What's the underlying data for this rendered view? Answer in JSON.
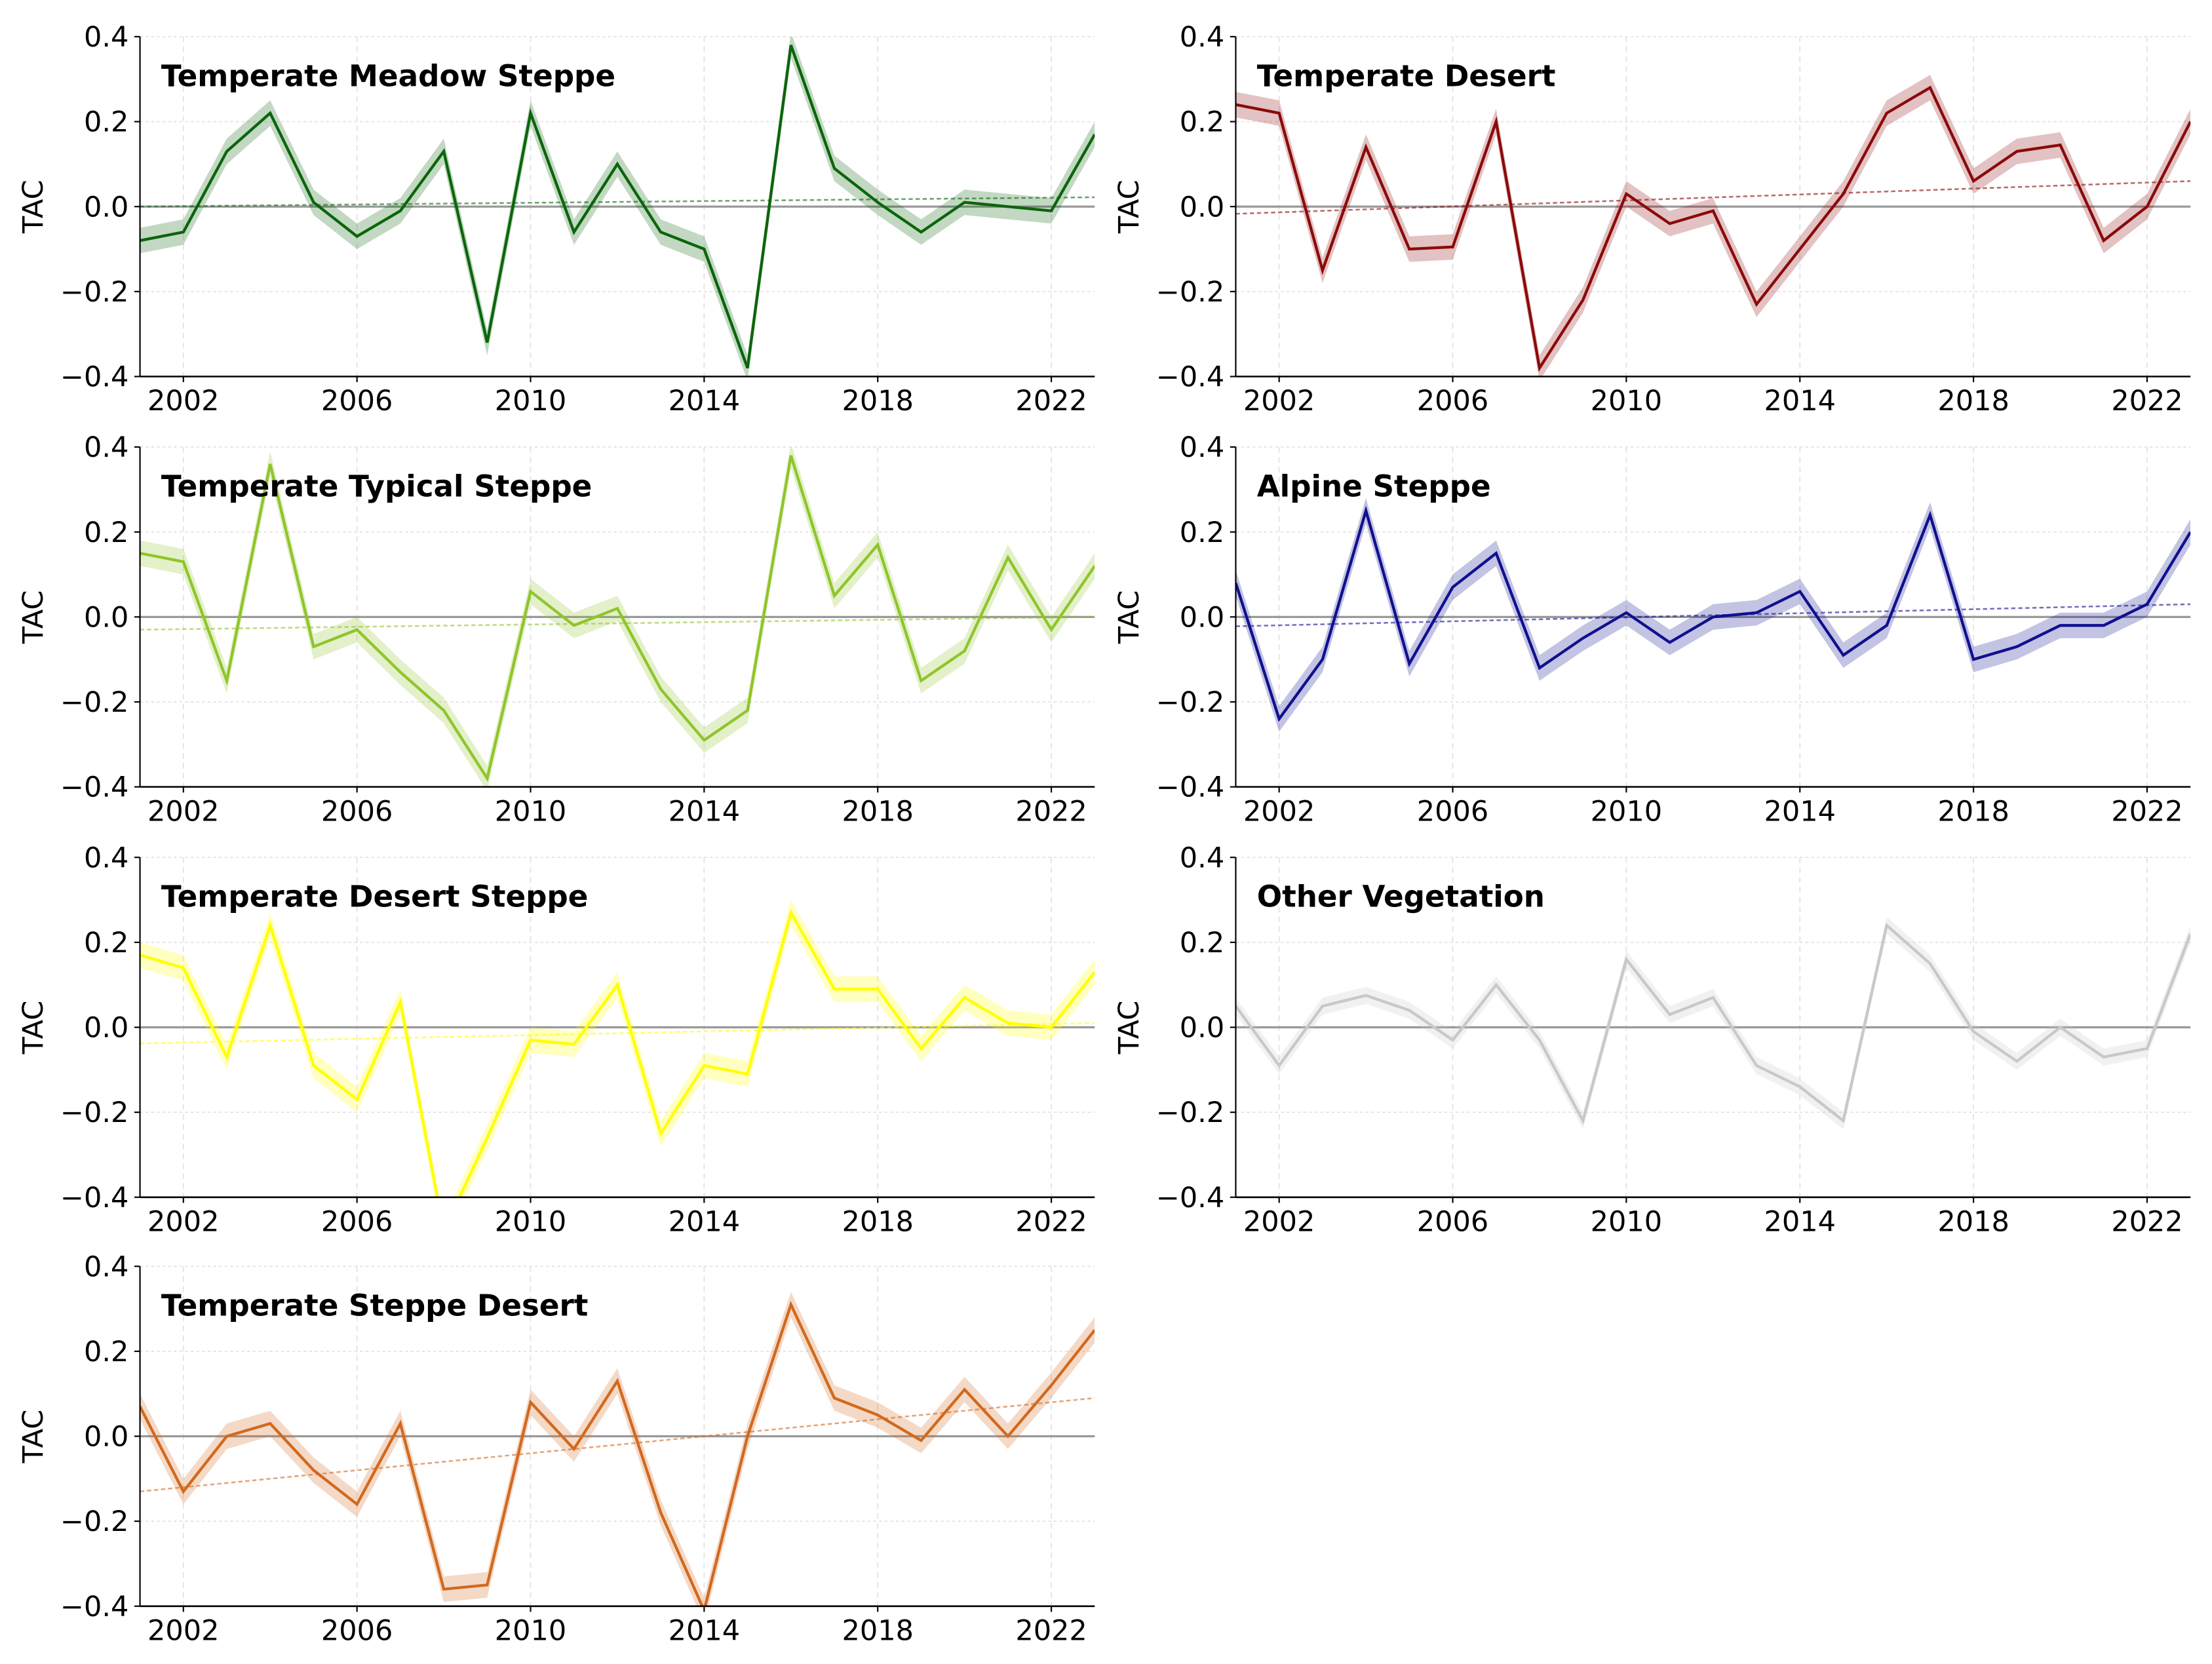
{
  "chart_data": [
    {
      "type": "line",
      "title": "Temperate Meadow Steppe",
      "ylabel": "TAC",
      "color": "#0b650b",
      "band": 0.03,
      "trend": [
        0.0,
        0.022
      ],
      "values": [
        -0.08,
        -0.06,
        0.13,
        0.22,
        0.01,
        -0.07,
        -0.01,
        0.13,
        -0.32,
        0.22,
        -0.06,
        0.1,
        -0.06,
        -0.1,
        -0.38,
        0.38,
        0.09,
        0.01,
        -0.06,
        0.01,
        0.0,
        -0.01,
        0.17
      ]
    },
    {
      "type": "line",
      "title": "Temperate Desert",
      "ylabel": "TAC",
      "color": "#8b0a0a",
      "band": 0.03,
      "trend": [
        -0.017,
        0.06
      ],
      "values": [
        0.24,
        0.22,
        -0.15,
        0.14,
        -0.1,
        -0.095,
        0.2,
        -0.38,
        -0.22,
        0.03,
        -0.04,
        -0.01,
        -0.23,
        -0.1,
        0.03,
        0.22,
        0.28,
        0.06,
        0.13,
        0.145,
        -0.08,
        0.0,
        0.2
      ]
    },
    {
      "type": "line",
      "title": "Temperate Typical Steppe",
      "ylabel": "TAC",
      "color": "#8fc52a",
      "band": 0.03,
      "trend": [
        -0.03,
        0.0
      ],
      "values": [
        0.15,
        0.13,
        -0.15,
        0.36,
        -0.07,
        -0.03,
        -0.13,
        -0.22,
        -0.38,
        0.06,
        -0.02,
        0.02,
        -0.17,
        -0.29,
        -0.22,
        0.38,
        0.05,
        0.17,
        -0.15,
        -0.08,
        0.14,
        -0.03,
        0.12
      ]
    },
    {
      "type": "line",
      "title": "Alpine Steppe",
      "ylabel": "TAC",
      "color": "#10108f",
      "band": 0.03,
      "trend": [
        -0.022,
        0.03
      ],
      "values": [
        0.08,
        -0.24,
        -0.1,
        0.25,
        -0.11,
        0.07,
        0.15,
        -0.12,
        -0.05,
        0.01,
        -0.06,
        0.0,
        0.01,
        0.06,
        -0.09,
        -0.02,
        0.24,
        -0.1,
        -0.07,
        -0.02,
        -0.02,
        0.03,
        0.2
      ]
    },
    {
      "type": "line",
      "title": "Temperate Desert Steppe",
      "ylabel": "TAC",
      "color": "#ffff00",
      "band": 0.03,
      "trend": [
        -0.038,
        0.01
      ],
      "values": [
        0.17,
        0.14,
        -0.07,
        0.24,
        -0.09,
        -0.17,
        0.06,
        -0.48,
        -0.26,
        -0.03,
        -0.04,
        0.1,
        -0.25,
        -0.09,
        -0.11,
        0.27,
        0.09,
        0.09,
        -0.05,
        0.07,
        0.01,
        0.0,
        0.13
      ]
    },
    {
      "type": "line",
      "title": "Other Vegetation",
      "ylabel": "TAC",
      "color": "#c8c8c8",
      "band": 0.02,
      "trend": null,
      "values": [
        0.05,
        -0.09,
        0.05,
        0.075,
        0.04,
        -0.03,
        0.1,
        -0.03,
        -0.22,
        0.16,
        0.03,
        0.07,
        -0.09,
        -0.14,
        -0.22,
        0.24,
        0.15,
        -0.01,
        -0.08,
        0.0,
        -0.07,
        -0.05,
        0.22
      ]
    },
    {
      "type": "line",
      "title": "Temperate Steppe Desert",
      "ylabel": "TAC",
      "color": "#d2691e",
      "band": 0.03,
      "trend": [
        -0.13,
        0.09
      ],
      "values": [
        0.07,
        -0.13,
        0.0,
        0.03,
        -0.08,
        -0.16,
        0.03,
        -0.36,
        -0.35,
        0.08,
        -0.03,
        0.13,
        -0.18,
        -0.41,
        0.0,
        0.31,
        0.09,
        0.05,
        -0.01,
        0.11,
        0.0,
        0.12,
        0.25
      ]
    }
  ],
  "shared": {
    "x": [
      2001,
      2002,
      2003,
      2004,
      2005,
      2006,
      2007,
      2008,
      2009,
      2010,
      2011,
      2012,
      2013,
      2014,
      2015,
      2016,
      2017,
      2018,
      2019,
      2020,
      2021,
      2022,
      2023
    ],
    "xlim": [
      2001,
      2023
    ],
    "ylim": [
      -0.4,
      0.4
    ],
    "xticks": [
      2002,
      2006,
      2010,
      2014,
      2018,
      2022
    ],
    "yticks": [
      0.4,
      0.2,
      0.0,
      -0.2,
      -0.4
    ],
    "ytick_labels": [
      "0.4",
      "0.2",
      "0.0",
      "−0.2",
      "−0.4"
    ],
    "xtick_labels": [
      "2002",
      "2006",
      "2010",
      "2014",
      "2018",
      "2022"
    ],
    "grid": true,
    "zero_line_color": "#999999",
    "layout": "4x2 grid"
  }
}
